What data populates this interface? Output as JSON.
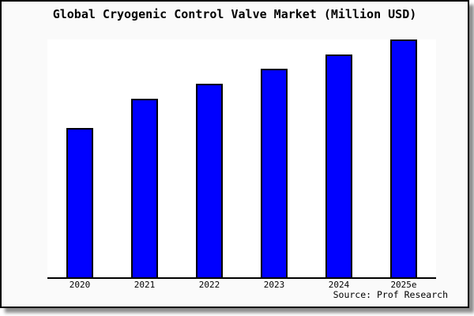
{
  "title": "Global Cryogenic Control Valve Market (Million USD)",
  "source_note": "Source: Prof Research",
  "colors": {
    "page_background": "#fafafa",
    "plot_background": "#ffffff",
    "bar_fill": "#0000ff",
    "bar_border": "#000000",
    "axis_line": "#000000",
    "text": "#000000",
    "window_border": "#000000",
    "drop_shadow": "#999999"
  },
  "chart_data": {
    "type": "bar",
    "title": "Global Cryogenic Control Valve Market (Million USD)",
    "categories": [
      "2020",
      "2021",
      "2022",
      "2023",
      "2024",
      "2025e"
    ],
    "values": [
      62.8,
      75.1,
      81.4,
      87.7,
      93.7,
      100
    ],
    "series_note": "relative scale; no y-axis values shown in image",
    "xlabel": "",
    "ylabel": "",
    "ylim": [
      0,
      100
    ],
    "y_axis_visible": false,
    "gridlines": false,
    "legend_visible": false,
    "bar_color": "#0000ff",
    "bar_border_color": "#000000",
    "annotations": [
      "Source: Prof Research"
    ]
  }
}
